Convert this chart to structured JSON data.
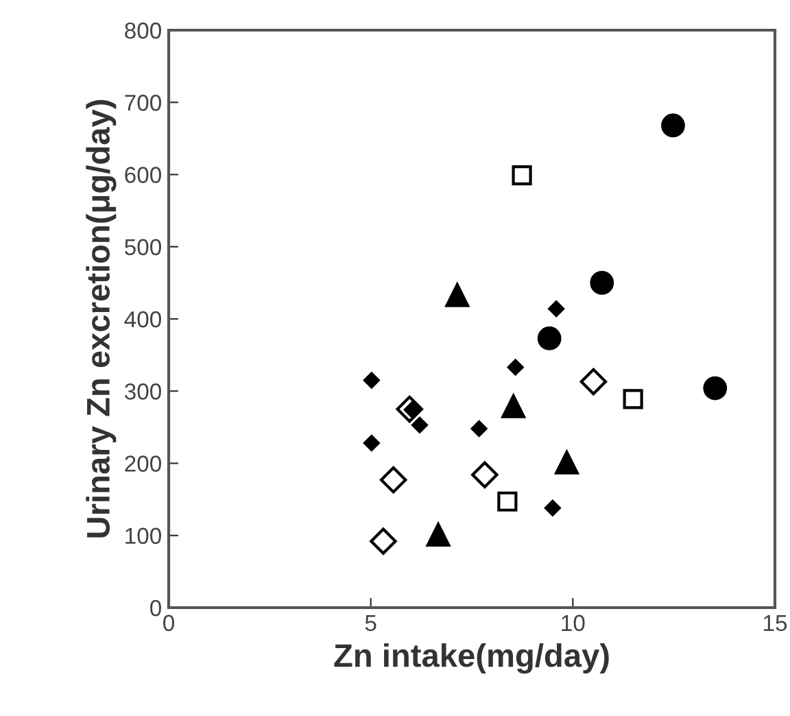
{
  "chart_data": {
    "type": "scatter",
    "xlabel": "Zn intake(mg/day)",
    "ylabel": "Urinary Zn excretion(μg/day)",
    "xlim": [
      0,
      15
    ],
    "xticks": [
      0,
      5,
      10,
      15
    ],
    "ylim": [
      0,
      800
    ],
    "yticks": [
      0,
      100,
      200,
      300,
      400,
      500,
      600,
      700,
      800
    ],
    "grid": false,
    "legend": false,
    "series": [
      {
        "color": "#000000",
        "marker": "circle",
        "x": [
          12.48,
          10.72,
          9.42,
          13.52
        ],
        "values": [
          668,
          450,
          373,
          304
        ]
      },
      {
        "color": "#ffffff",
        "marker": "square",
        "x": [
          8.74,
          11.49,
          8.38
        ],
        "values": [
          599,
          289,
          147
        ]
      },
      {
        "color": "#000000",
        "marker": "triangle",
        "x": [
          7.14,
          8.53,
          9.85,
          6.67
        ],
        "values": [
          433,
          279,
          201,
          101
        ]
      },
      {
        "color": "#ffffff",
        "marker": "diamond",
        "x": [
          10.51,
          5.96,
          5.56,
          7.82,
          5.31
        ],
        "values": [
          313,
          275,
          177,
          184,
          92
        ]
      },
      {
        "color": "#000000",
        "marker": "diamond",
        "x": [
          5.02,
          5.02,
          9.59,
          8.58,
          7.68,
          9.5,
          6.02,
          6.21
        ],
        "values": [
          315,
          228,
          414,
          333,
          248,
          138,
          274,
          253
        ]
      }
    ]
  }
}
